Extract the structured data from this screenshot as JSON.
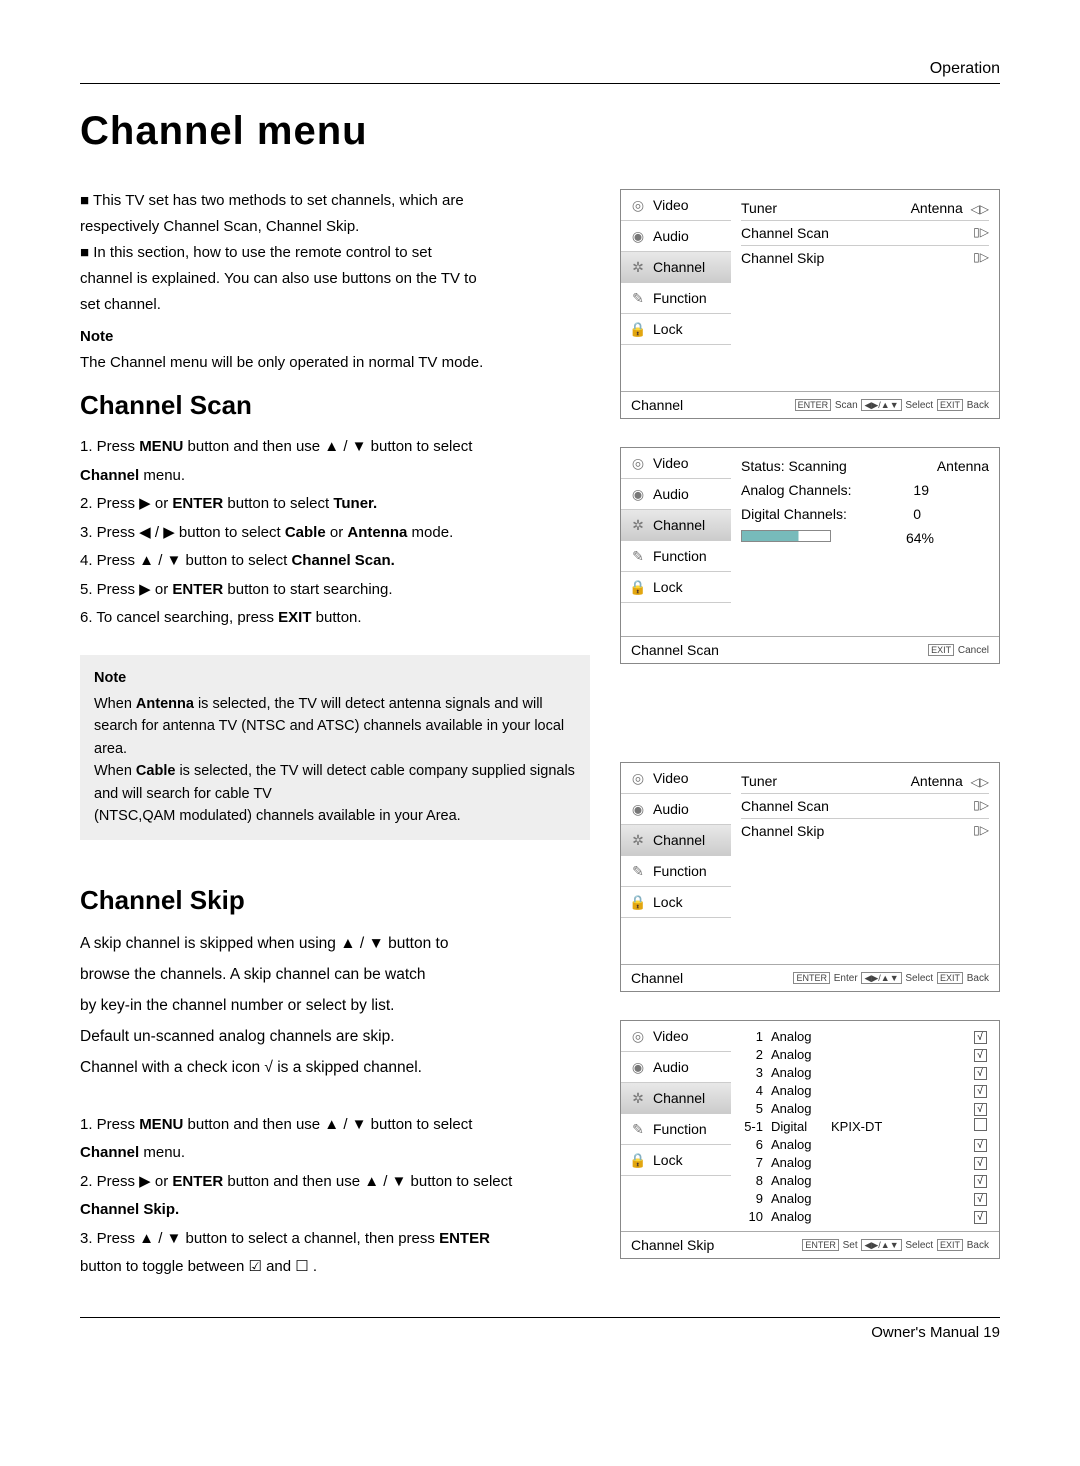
{
  "header": {
    "section": "Operation"
  },
  "title": "Channel menu",
  "intro": {
    "l1": "This TV set has two methods to set channels, which are",
    "l2": "respectively Channel Scan,  Channel Skip.",
    "l3": "In this section, how to use the remote control  to set",
    "l4": "channel is explained. You can also use buttons on the TV  to",
    "l5": "set channel.",
    "noteHead": "Note",
    "noteLine": "The Channel menu will be only operated  in normal TV mode."
  },
  "scan": {
    "heading": "Channel Scan",
    "s1a": "1. Press ",
    "s1b": "MENU",
    "s1c": " button and then use ▲ / ▼ button to select",
    "s1d": "Channel",
    "s1e": " menu.",
    "s2a": "2. Press ▶ or ",
    "s2b": "ENTER",
    "s2c": " button to select ",
    "s2d": "Tuner.",
    "s3a": "3. Press ◀ / ▶ button to select ",
    "s3b": "Cable",
    "s3c": " or ",
    "s3d": "Antenna",
    "s3e": "  mode.",
    "s4a": "4. Press ▲ / ▼ button to select ",
    "s4b": "Channel Scan.",
    "s5a": "5. Press ▶ or ",
    "s5b": "ENTER",
    "s5c": " button to start searching.",
    "s6a": "6. To cancel searching, press ",
    "s6b": "EXIT",
    "s6c": " button."
  },
  "notebox": {
    "head": "Note",
    "p1a": "When ",
    "p1b": "Antenna",
    "p1c": "  is selected, the TV will detect antenna signals and will search for antenna TV (NTSC and ATSC) channels available in your local area.",
    "p2a": "When ",
    "p2b": "Cable",
    "p2c": " is selected, the TV will detect cable company supplied signals and will search for cable TV",
    "p3": "(NTSC,QAM modulated) channels available in your Area."
  },
  "skip": {
    "heading": "Channel Skip",
    "d1": "A skip channel is skipped when using ▲ / ▼ button to",
    "d2": "browse the channels. A skip channel can be watch",
    "d3": "by key-in the channel number or select by list.",
    "d4": "Default un-scanned analog channels are skip.",
    "d5": "Channel with a check icon √ is a skipped channel.",
    "s1a": "1. Press ",
    "s1b": "MENU",
    "s1c": " button and then use ▲ / ▼ button to select",
    "s1d": "Channel",
    "s1e": " menu.",
    "s2a": "2. Press ▶ or ",
    "s2b": "ENTER",
    "s2c": " button and then use ▲ / ▼ button to select",
    "s2d": "Channel Skip.",
    "s3a": "3. Press ▲ / ▼ button to select a channel, then press ",
    "s3b": "ENTER",
    "s3c": "button to toggle between ☑ and ☐ ."
  },
  "side": {
    "video": "Video",
    "audio": "Audio",
    "channel": "Channel",
    "function": "Function",
    "lock": "Lock"
  },
  "menu1": {
    "tuner": "Tuner",
    "tunerVal": "Antenna",
    "scan": "Channel Scan",
    "skip": "Channel Skip",
    "footer": "Channel",
    "hint": "ENTER Scan ◀▶/▲▼ Select EXIT Back"
  },
  "menu2": {
    "status": "Status: Scanning",
    "statusVal": "Antenna",
    "analog": "Analog Channels:",
    "analogVal": "19",
    "digital": "Digital Channels:",
    "digitalVal": "0",
    "pct": "64%",
    "footer": "Channel Scan",
    "hint": "EXIT Cancel"
  },
  "menu3": {
    "tuner": "Tuner",
    "tunerVal": "Antenna",
    "scan": "Channel Scan",
    "skip": "Channel Skip",
    "footer": "Channel",
    "hint": "ENTER Enter ◀▶/▲▼ Select EXIT Back"
  },
  "menu4": {
    "rows": [
      {
        "n": "1",
        "t": "Analog",
        "name": "",
        "c": true
      },
      {
        "n": "2",
        "t": "Analog",
        "name": "",
        "c": true
      },
      {
        "n": "3",
        "t": "Analog",
        "name": "",
        "c": true
      },
      {
        "n": "4",
        "t": "Analog",
        "name": "",
        "c": true
      },
      {
        "n": "5",
        "t": "Analog",
        "name": "",
        "c": true
      },
      {
        "n": "5-1",
        "t": "Digital",
        "name": "KPIX-DT",
        "c": false
      },
      {
        "n": "6",
        "t": "Analog",
        "name": "",
        "c": true
      },
      {
        "n": "7",
        "t": "Analog",
        "name": "",
        "c": true
      },
      {
        "n": "8",
        "t": "Analog",
        "name": "",
        "c": true
      },
      {
        "n": "9",
        "t": "Analog",
        "name": "",
        "c": true
      },
      {
        "n": "10",
        "t": "Analog",
        "name": "",
        "c": true
      }
    ],
    "footer": "Channel Skip",
    "hint": "ENTER Set ◀▶/▲▼ Select EXIT Back"
  },
  "footer": {
    "text": "Owner's Manual 19"
  }
}
